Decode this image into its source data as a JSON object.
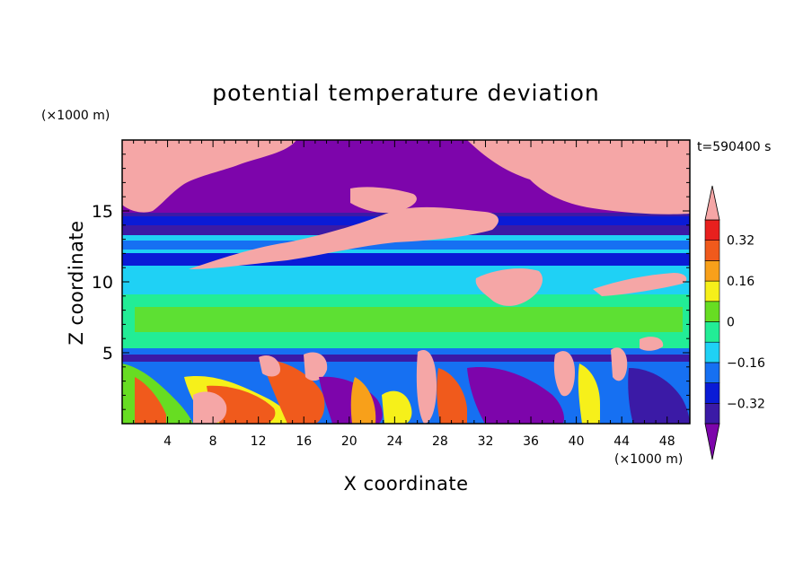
{
  "chart_data": {
    "type": "heatmap",
    "title": "potential temperature deviation",
    "xlabel": "X coordinate",
    "ylabel": "Z coordinate",
    "x_unit": "(×1000 m)",
    "y_unit": "(×1000 m)",
    "time_label": "t=590400 s",
    "xlim": [
      0,
      50
    ],
    "ylim": [
      0,
      20
    ],
    "x_ticks": [
      4,
      8,
      12,
      16,
      20,
      24,
      28,
      32,
      36,
      40,
      44,
      48
    ],
    "y_ticks": [
      5,
      10,
      15
    ],
    "colorbar": {
      "levels": [
        -0.4,
        -0.32,
        -0.24,
        -0.16,
        -0.08,
        0,
        0.08,
        0.16,
        0.24,
        0.32,
        0.4
      ],
      "tick_labels": [
        "0.32",
        "0.16",
        "0",
        "−0.16",
        "−0.32"
      ],
      "tick_values": [
        0.32,
        0.16,
        0,
        -0.16,
        -0.32
      ],
      "colors": [
        "#7d05ab",
        "#3b1aa6",
        "#0a1bd6",
        "#1670f2",
        "#1fd1f5",
        "#22ed96",
        "#67dd22",
        "#f6f01a",
        "#f8a01a",
        "#f05a1c",
        "#e8201e",
        "#f5a6a6"
      ],
      "extend": "both"
    },
    "field_bands": [
      {
        "z": [
          0,
          4.8
        ],
        "value": "mixed -0.4 to 0.4"
      },
      {
        "z": [
          4.8,
          5.2
        ],
        "value": -0.3
      },
      {
        "z": [
          5.2,
          9
        ],
        "value": 0.04
      },
      {
        "z": [
          9,
          11
        ],
        "value": -0.1
      },
      {
        "z": [
          11,
          12
        ],
        "value": -0.32
      },
      {
        "z": [
          12,
          13.2
        ],
        "value": -0.12
      },
      {
        "z": [
          13.2,
          14.5
        ],
        "value": -0.36
      },
      {
        "z": [
          14.5,
          20
        ],
        "value": -0.45
      }
    ]
  }
}
